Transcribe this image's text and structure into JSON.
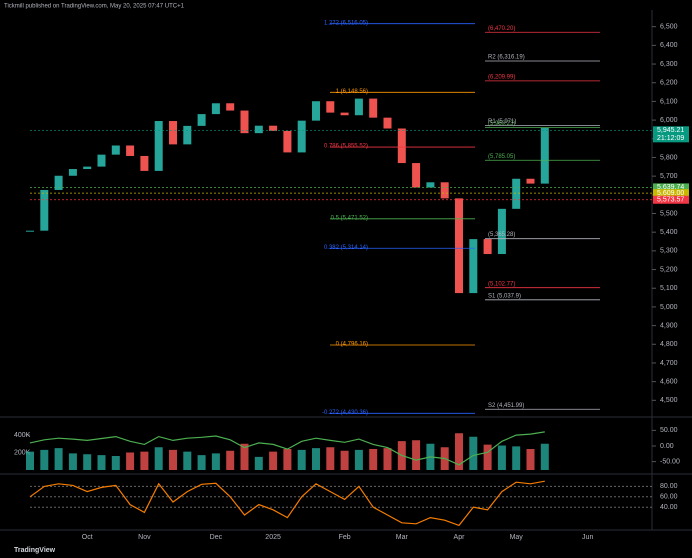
{
  "header": "Tickmill published on TradingView.com, May 20, 2025 07:47 UTC+1",
  "footer": "TradingView",
  "chart_data": {
    "type": "candlestick",
    "categories": [
      null,
      null,
      null,
      null,
      "Oct",
      null,
      null,
      null,
      "Nov",
      null,
      null,
      null,
      null,
      "Dec",
      null,
      null,
      null,
      "2025",
      null,
      null,
      null,
      null,
      "Feb",
      null,
      null,
      null,
      "Mar",
      null,
      null,
      null,
      "Apr",
      null,
      null,
      null,
      "May",
      null,
      null,
      null,
      null,
      "Jun"
    ],
    "series": [
      {
        "name": "Close",
        "up_color": "#26a69a",
        "down_color": "#ef5350",
        "values": [
          5408,
          5626,
          5702,
          5738,
          5751,
          5815,
          5864,
          5808,
          5728,
          5995,
          5870,
          5969,
          6032,
          6090,
          6051,
          5930,
          5970,
          5942,
          5827,
          5997,
          6101,
          6040,
          6026,
          6115,
          6013,
          5955,
          5770,
          5639,
          5667,
          5581,
          5074,
          5363,
          5283,
          5525,
          5686,
          5660,
          5958,
          null,
          null,
          null
        ]
      }
    ],
    "ylim": [
      4400,
      6600
    ],
    "yticks": [
      {
        "value": 4500,
        "label": "4,500"
      },
      {
        "value": 4600,
        "label": "4,600"
      },
      {
        "value": 4700,
        "label": "4,700"
      },
      {
        "value": 4800,
        "label": "4,800"
      },
      {
        "value": 4900,
        "label": "4,900"
      },
      {
        "value": 5000,
        "label": "5,000"
      },
      {
        "value": 5100,
        "label": "5,100"
      },
      {
        "value": 5200,
        "label": "5,200"
      },
      {
        "value": 5300,
        "label": "5,300"
      },
      {
        "value": 5400,
        "label": "5,400"
      },
      {
        "value": 5500,
        "label": "5,500"
      },
      {
        "value": 5600,
        "label": "5,600"
      },
      {
        "value": 5700,
        "label": "5,700"
      },
      {
        "value": 5800,
        "label": "5,800"
      },
      {
        "value": 5900,
        "label": "5,900"
      },
      {
        "value": 6000,
        "label": "6,000"
      },
      {
        "value": 6100,
        "label": "6,100"
      },
      {
        "value": 6200,
        "label": "6,200"
      },
      {
        "value": 6300,
        "label": "6,300"
      },
      {
        "value": 6400,
        "label": "6,400"
      },
      {
        "value": 6500,
        "label": "6,500"
      }
    ],
    "fib_levels": [
      {
        "label": "1.272 (6,516.05)",
        "value": 6516.05,
        "color": "#2962ff"
      },
      {
        "label": "1 (6,148.56)",
        "value": 6148.56,
        "color": "#ff9800"
      },
      {
        "label": "0.786 (5,855.52)",
        "value": 5855.52,
        "color": "#f23645"
      },
      {
        "label": "0.5 (5,471.52)",
        "value": 5471.52,
        "color": "#4caf50"
      },
      {
        "label": "0.382 (5,314.14)",
        "value": 5314.14,
        "color": "#2962ff"
      },
      {
        "label": "0 (4,796.16)",
        "value": 4796.16,
        "color": "#ff9800"
      },
      {
        "label": "-0.272 (4,430.36)",
        "value": 4430.36,
        "color": "#2962ff"
      }
    ],
    "pivot_levels": [
      {
        "label": "(6,470.20)",
        "value": 6470.2,
        "color": "#f23645"
      },
      {
        "label": "R2 (6,316.19)",
        "value": 6316.19,
        "color": "#b2b5be"
      },
      {
        "label": "(6,209.99)",
        "value": 6209.99,
        "color": "#f23645"
      },
      {
        "label": "(5,960.23)",
        "value": 5960.23,
        "color": "#4caf50"
      },
      {
        "label": "R1 (5,971)",
        "value": 5971,
        "color": "#b2b5be"
      },
      {
        "label": "(5,785.05)",
        "value": 5785.05,
        "color": "#4caf50"
      },
      {
        "label": "(5,365.28)",
        "value": 5365.28,
        "color": "#b2b5be"
      },
      {
        "label": "(5,102.77)",
        "value": 5102.77,
        "color": "#f23645"
      },
      {
        "label": "S1 (5,037.9)",
        "value": 5037.9,
        "color": "#b2b5be"
      },
      {
        "label": "S2 (4,451.99)",
        "value": 4451.99,
        "color": "#b2b5be"
      }
    ],
    "price_tags": [
      {
        "label": "5,945.21",
        "value": 5945.21,
        "color": "#089981",
        "sub": "21:12:09"
      },
      {
        "label": "5,639.74",
        "value": 5639.74,
        "color": "#4caf50"
      },
      {
        "label": "5,609.00",
        "value": 5609,
        "color": "#c8b900"
      },
      {
        "label": "5,573.57",
        "value": 5573.57,
        "color": "#f23645"
      }
    ],
    "volume": {
      "values": [
        210000,
        230000,
        250000,
        190000,
        180000,
        170000,
        160000,
        200000,
        210000,
        260000,
        230000,
        210000,
        170000,
        190000,
        220000,
        300000,
        150000,
        210000,
        240000,
        230000,
        250000,
        260000,
        220000,
        230000,
        240000,
        250000,
        330000,
        340000,
        300000,
        260000,
        420000,
        380000,
        290000,
        280000,
        270000,
        240000,
        300000,
        null,
        null,
        null
      ],
      "ylim": [
        0,
        560000
      ],
      "yticks": [
        {
          "value": 200000,
          "label": "200K"
        },
        {
          "value": 400000,
          "label": "400K"
        }
      ],
      "osc": [
        10,
        20,
        25,
        22,
        18,
        24,
        30,
        15,
        5,
        30,
        18,
        25,
        28,
        32,
        20,
        -5,
        10,
        5,
        -10,
        15,
        25,
        18,
        12,
        22,
        5,
        -5,
        -30,
        -45,
        -35,
        -40,
        -60,
        -30,
        -20,
        15,
        35,
        38,
        45,
        null,
        null,
        null
      ],
      "y2lim": [
        -80,
        80
      ],
      "y2ticks": [
        {
          "value": 50,
          "label": "50.00"
        },
        {
          "value": 0,
          "label": "0.00"
        },
        {
          "value": -50,
          "label": "-50.00"
        }
      ]
    },
    "stoch": {
      "values": [
        60,
        80,
        85,
        82,
        70,
        78,
        82,
        45,
        30,
        85,
        50,
        70,
        84,
        86,
        60,
        25,
        45,
        35,
        20,
        60,
        85,
        70,
        55,
        80,
        40,
        25,
        10,
        8,
        20,
        15,
        5,
        40,
        35,
        70,
        88,
        85,
        90,
        null,
        null,
        null
      ],
      "ylim": [
        0,
        100
      ],
      "yticks": [
        {
          "value": 80,
          "label": "80.00"
        },
        {
          "value": 60,
          "label": "60.00"
        },
        {
          "value": 40,
          "label": "40.00"
        }
      ]
    }
  }
}
